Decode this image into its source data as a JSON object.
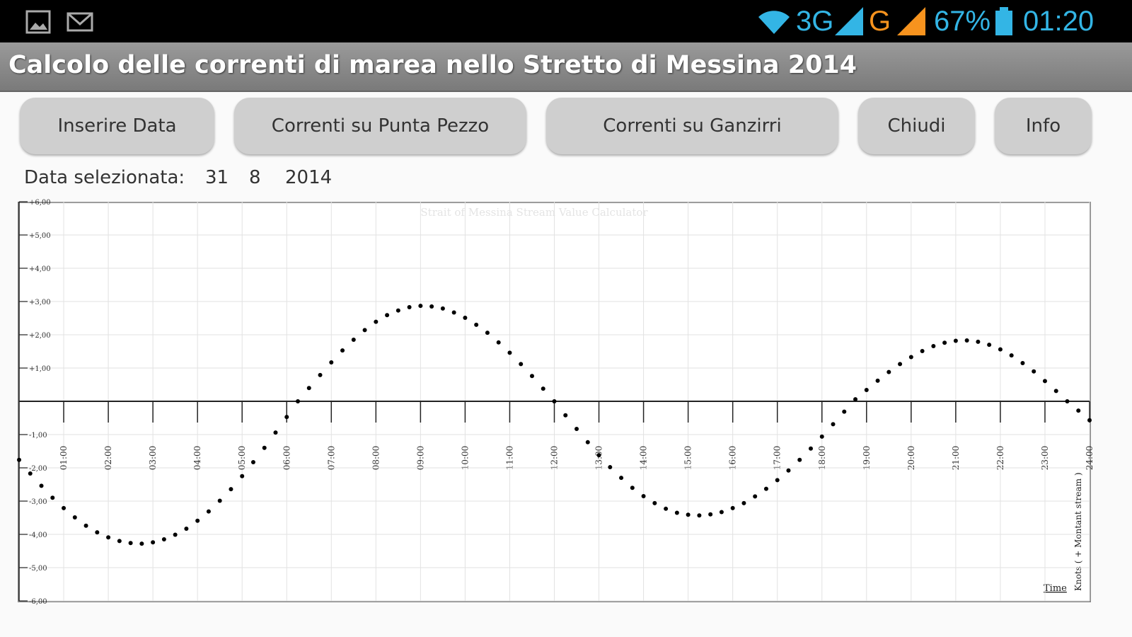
{
  "status_bar": {
    "network_1": "3G",
    "network_2": "G",
    "battery": "67%",
    "time": "01:20"
  },
  "app_title": "Calcolo delle correnti di marea nello Stretto di Messina 2014",
  "buttons": [
    "Inserire Data",
    "Correnti su Punta Pezzo",
    "Correnti su Ganzirri",
    "Chiudi",
    "Info"
  ],
  "date": {
    "label": "Data selezionata:",
    "day": "31",
    "month": "8",
    "year": "2014"
  },
  "chart_data": {
    "type": "scatter",
    "title": "Strait of Messina Stream Value Calculator",
    "x_label": "Time",
    "y_label": "Knots ( + Montant stream )",
    "color": "#000000",
    "grid": true,
    "xlim": [
      0,
      24
    ],
    "ylim": [
      -6,
      6
    ],
    "xticks": [
      {
        "value": 1,
        "label": "01:00"
      },
      {
        "value": 2,
        "label": "02:00"
      },
      {
        "value": 3,
        "label": "03:00"
      },
      {
        "value": 4,
        "label": "04:00"
      },
      {
        "value": 5,
        "label": "05:00"
      },
      {
        "value": 6,
        "label": "06:00"
      },
      {
        "value": 7,
        "label": "07:00"
      },
      {
        "value": 8,
        "label": "08:00"
      },
      {
        "value": 9,
        "label": "09:00"
      },
      {
        "value": 10,
        "label": "10:00"
      },
      {
        "value": 11,
        "label": "11:00"
      },
      {
        "value": 12,
        "label": "12:00"
      },
      {
        "value": 13,
        "label": "13:00"
      },
      {
        "value": 14,
        "label": "14:00"
      },
      {
        "value": 15,
        "label": "15:00"
      },
      {
        "value": 16,
        "label": "16:00"
      },
      {
        "value": 17,
        "label": "17:00"
      },
      {
        "value": 18,
        "label": "18:00"
      },
      {
        "value": 19,
        "label": "19:00"
      },
      {
        "value": 20,
        "label": "20:00"
      },
      {
        "value": 21,
        "label": "21:00"
      },
      {
        "value": 22,
        "label": "22:00"
      },
      {
        "value": 23,
        "label": "23:00"
      },
      {
        "value": 24,
        "label": "24:00"
      }
    ],
    "yticks": [
      {
        "value": 6,
        "label": "+6,00"
      },
      {
        "value": 5,
        "label": "+5,00"
      },
      {
        "value": 4,
        "label": "+4,00"
      },
      {
        "value": 3,
        "label": "+3,00"
      },
      {
        "value": 2,
        "label": "+2,00"
      },
      {
        "value": 1,
        "label": "+1,00"
      },
      {
        "value": -1,
        "label": "-1,00"
      },
      {
        "value": -2,
        "label": "-2,00"
      },
      {
        "value": -3,
        "label": "-3,00"
      },
      {
        "value": -4,
        "label": "-4,00"
      },
      {
        "value": -5,
        "label": "-5,00"
      },
      {
        "value": -6,
        "label": "-6,00"
      }
    ],
    "x": [
      0,
      0.25,
      0.5,
      0.75,
      1,
      1.25,
      1.5,
      1.75,
      2,
      2.25,
      2.5,
      2.75,
      3,
      3.25,
      3.5,
      3.75,
      4,
      4.25,
      4.5,
      4.75,
      5,
      5.25,
      5.5,
      5.75,
      6,
      6.25,
      6.5,
      6.75,
      7,
      7.25,
      7.5,
      7.75,
      8,
      8.25,
      8.5,
      8.75,
      9,
      9.25,
      9.5,
      9.75,
      10,
      10.25,
      10.5,
      10.75,
      11,
      11.25,
      11.5,
      11.75,
      12,
      12.25,
      12.5,
      12.75,
      13,
      13.25,
      13.5,
      13.75,
      14,
      14.25,
      14.5,
      14.75,
      15,
      15.25,
      15.5,
      15.75,
      16,
      16.25,
      16.5,
      16.75,
      17,
      17.25,
      17.5,
      17.75,
      18,
      18.25,
      18.5,
      18.75,
      19,
      19.25,
      19.5,
      19.75,
      20,
      20.25,
      20.5,
      20.75,
      21,
      21.25,
      21.5,
      21.75,
      22,
      22.25,
      22.5,
      22.75,
      23,
      23.25,
      23.5,
      23.75,
      24
    ],
    "values": [
      -1.76,
      -2.17,
      -2.54,
      -2.9,
      -3.21,
      -3.49,
      -3.74,
      -3.94,
      -4.09,
      -4.2,
      -4.26,
      -4.28,
      -4.24,
      -4.15,
      -4.01,
      -3.83,
      -3.59,
      -3.31,
      -2.99,
      -2.64,
      -2.25,
      -1.83,
      -1.4,
      -0.94,
      -0.47,
      0,
      0.4,
      0.79,
      1.17,
      1.53,
      1.85,
      2.14,
      2.39,
      2.59,
      2.73,
      2.83,
      2.87,
      2.85,
      2.79,
      2.67,
      2.51,
      2.3,
      2.06,
      1.77,
      1.46,
      1.12,
      0.76,
      0.38,
      0,
      -0.42,
      -0.83,
      -1.23,
      -1.62,
      -1.98,
      -2.3,
      -2.6,
      -2.85,
      -3.06,
      -3.23,
      -3.35,
      -3.41,
      -3.43,
      -3.4,
      -3.33,
      -3.21,
      -3.06,
      -2.86,
      -2.63,
      -2.37,
      -2.08,
      -1.76,
      -1.42,
      -1.06,
      -0.69,
      -0.31,
      0.06,
      0.34,
      0.62,
      0.88,
      1.12,
      1.33,
      1.51,
      1.66,
      1.76,
      1.82,
      1.83,
      1.79,
      1.7,
      1.56,
      1.38,
      1.15,
      0.9,
      0.61,
      0.31,
      0,
      -0.28,
      -0.57
    ]
  }
}
